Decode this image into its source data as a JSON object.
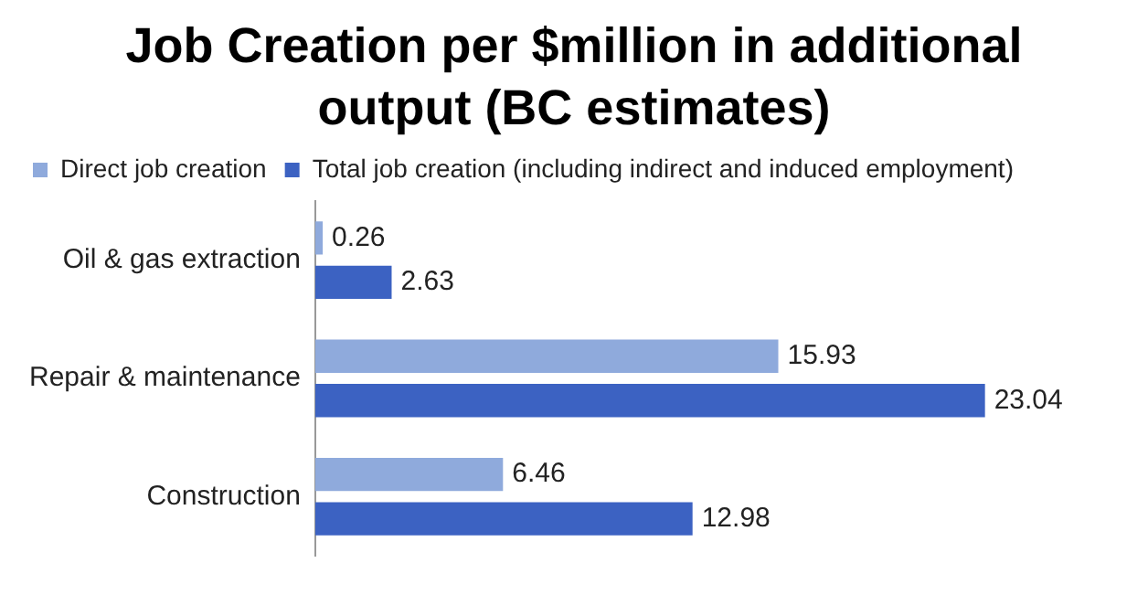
{
  "chart_data": {
    "type": "bar",
    "orientation": "horizontal",
    "title": "Job Creation per $million in additional output (BC estimates)",
    "categories": [
      "Oil & gas extraction",
      "Repair & maintenance",
      "Construction"
    ],
    "series": [
      {
        "name": "Direct job creation",
        "color": "#8faadc",
        "values": [
          0.26,
          15.93,
          6.46
        ]
      },
      {
        "name": "Total job creation (including indirect and induced employment)",
        "color": "#3c62c2",
        "values": [
          2.63,
          23.04,
          12.98
        ]
      }
    ],
    "data_labels": true,
    "legend": "top",
    "grid": false
  }
}
